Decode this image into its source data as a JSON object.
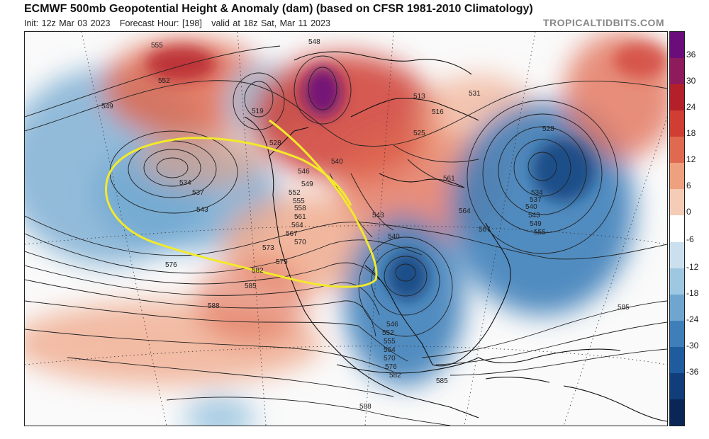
{
  "header": {
    "title": "ECMWF 500mb Geopotential Height & Anomaly (dam) (based on CFSR 1981-2010 Climatology)",
    "init": "Init: 12z Mar 03 2023",
    "forecast_hour": "Forecast Hour: [198]",
    "valid": "valid at 18z Sat, Mar 11 2023",
    "brand": "TROPICALTIDBITS.COM"
  },
  "colorbar": {
    "ticks": [
      "36",
      "30",
      "24",
      "18",
      "12",
      "6",
      "0",
      "-6",
      "-12",
      "-18",
      "-24",
      "-30",
      "-36"
    ],
    "colors": [
      "#6a0d7a",
      "#8e1b5c",
      "#b3202a",
      "#cf3d33",
      "#e06a4f",
      "#eea07f",
      "#f5ccb6",
      "#ffffff",
      "#cbe0ee",
      "#9ec7e1",
      "#6fa6cf",
      "#3f7fb9",
      "#1f5c9e",
      "#113e7a",
      "#0a2656"
    ]
  },
  "map": {
    "contour_labels": [
      "555",
      "552",
      "549",
      "548",
      "519",
      "528",
      "534",
      "537",
      "543",
      "546",
      "549",
      "552",
      "555",
      "558",
      "561",
      "564",
      "567",
      "570",
      "573",
      "576",
      "579",
      "582",
      "585",
      "588",
      "531",
      "513",
      "516",
      "525",
      "540",
      "561",
      "564",
      "567",
      "528",
      "534",
      "537",
      "540",
      "543",
      "549",
      "555",
      "543",
      "540",
      "546",
      "552",
      "555",
      "564",
      "570",
      "576",
      "582",
      "585",
      "588",
      "585"
    ]
  }
}
